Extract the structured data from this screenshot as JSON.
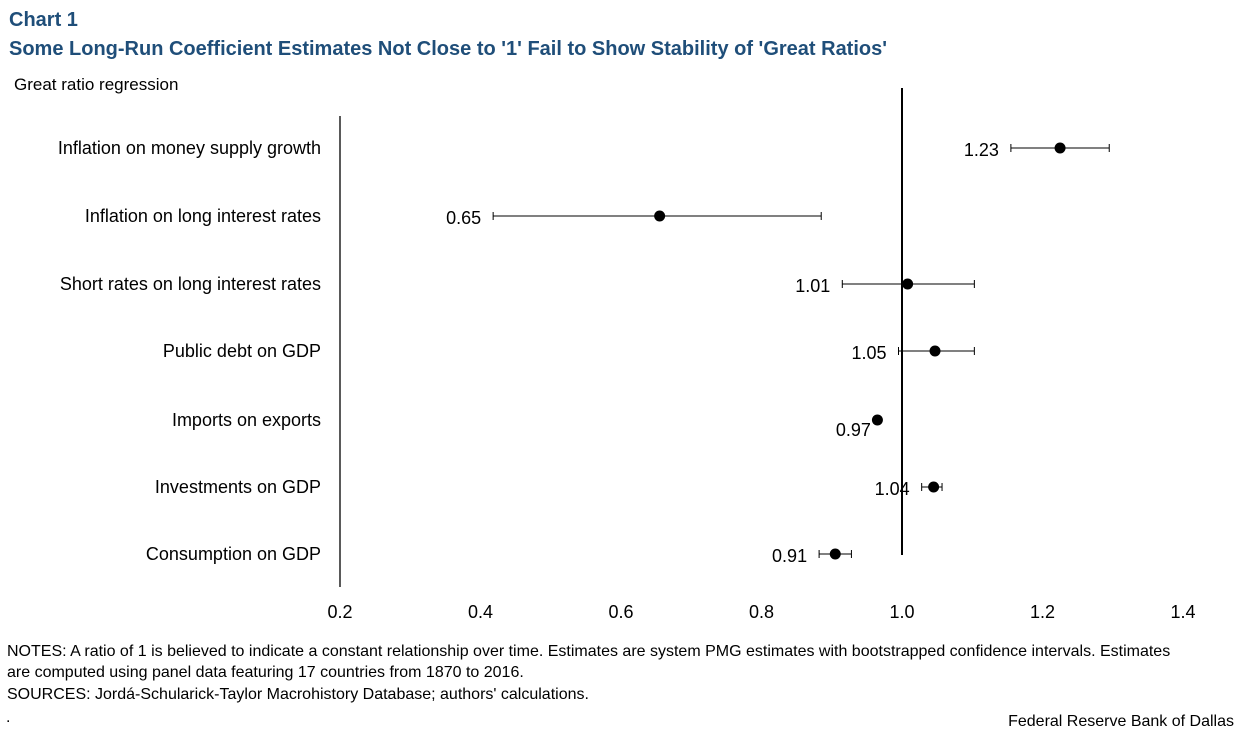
{
  "header": {
    "chart_label": "Chart 1",
    "title": "Some Long-Run Coefficient Estimates Not Close to '1' Fail to Show Stability of 'Great Ratios'"
  },
  "chart_data": {
    "type": "scatter",
    "subtitle": "Great ratio regression",
    "xlabel": "",
    "ylabel": "",
    "xlim": [
      0.2,
      1.4
    ],
    "x_ticks": [
      "0.2",
      "0.4",
      "0.6",
      "0.8",
      "1.0",
      "1.2",
      "1.4"
    ],
    "reference_line": 1.0,
    "grid": false,
    "series": [
      {
        "name": "Inflation on money supply growth",
        "value": 1.225,
        "label": "1.23",
        "ci_low": 1.155,
        "ci_high": 1.295
      },
      {
        "name": "Inflation on long interest rates",
        "value": 0.655,
        "label": "0.65",
        "ci_low": 0.418,
        "ci_high": 0.885
      },
      {
        "name": "Short rates on long interest rates",
        "value": 1.008,
        "label": "1.01",
        "ci_low": 0.915,
        "ci_high": 1.103
      },
      {
        "name": "Public debt on GDP",
        "value": 1.047,
        "label": "1.05",
        "ci_low": 0.995,
        "ci_high": 1.103
      },
      {
        "name": "Imports on exports",
        "value": 0.965,
        "label": "0.97",
        "ci_low": 0.96,
        "ci_high": 0.97
      },
      {
        "name": "Investments on GDP",
        "value": 1.045,
        "label": "1.04",
        "ci_low": 1.028,
        "ci_high": 1.057
      },
      {
        "name": "Consumption on GDP",
        "value": 0.905,
        "label": "0.91",
        "ci_low": 0.882,
        "ci_high": 0.928
      }
    ],
    "colors": {
      "marker": "#000000",
      "title": "#1f4e79"
    }
  },
  "footer": {
    "notes": "NOTES: A ratio of 1 is believed to indicate a constant relationship over time. Estimates are system PMG estimates with bootstrapped confidence intervals. Estimates are computed using panel data featuring 17 countries from 1870 to 2016.",
    "sources": "SOURCES: Jordá-Schularick-Taylor Macrohistory Database; authors' calculations.",
    "dot": ".",
    "credit": "Federal Reserve Bank of Dallas"
  }
}
